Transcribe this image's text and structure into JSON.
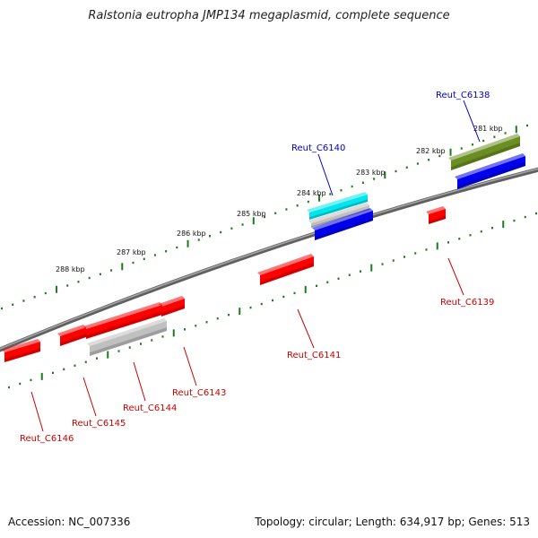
{
  "title": "Ralstonia eutropha JMP134 megaplasmid, complete sequence",
  "accession": "Accession: NC_007336",
  "topology": "Topology: circular; Length: 634,917 bp; Genes: 513",
  "colors": {
    "forward_label": "#0000cc",
    "reverse_label": "#cc0000",
    "backbone": "#808080",
    "tick": "#1f7a1f",
    "cds_red": "#ff0000",
    "cds_blue": "#0000ee",
    "cds_olive": "#6b8e23",
    "cds_cyan": "#00e5ee",
    "cds_grey": "#c0c0c0"
  },
  "scale_labels": [
    "281 kbp",
    "282 kbp",
    "283 kbp",
    "284 kbp",
    "285 kbp",
    "286 kbp",
    "287 kbp",
    "288 kbp"
  ],
  "genes": [
    {
      "name": "Reut_C6138",
      "strand": "forward"
    },
    {
      "name": "Reut_C6140",
      "strand": "forward"
    },
    {
      "name": "Reut_C6139",
      "strand": "reverse"
    },
    {
      "name": "Reut_C6141",
      "strand": "reverse"
    },
    {
      "name": "Reut_C6143",
      "strand": "reverse"
    },
    {
      "name": "Reut_C6144",
      "strand": "reverse"
    },
    {
      "name": "Reut_C6145",
      "strand": "reverse"
    },
    {
      "name": "Reut_C6146",
      "strand": "reverse"
    }
  ]
}
